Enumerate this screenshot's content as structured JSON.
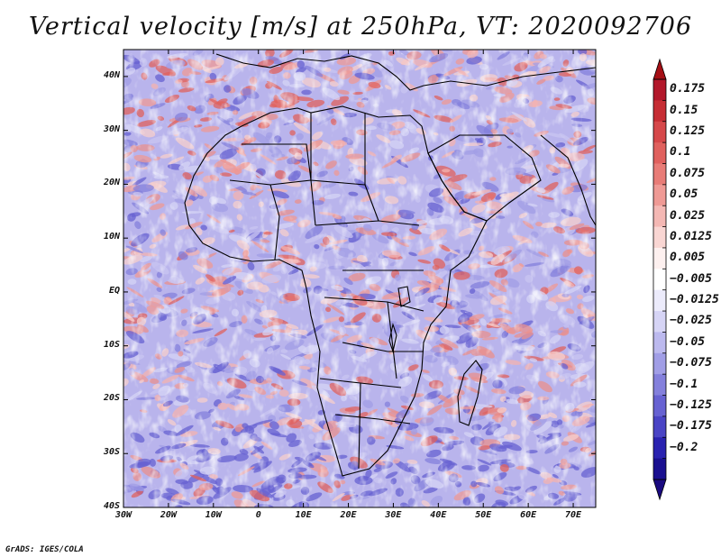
{
  "title": "Vertical velocity [m/s] at 250hPa, VT: 2020092706",
  "footer": "GrADS: IGES/COLA",
  "axes": {
    "lat_labels": [
      "40N",
      "30N",
      "20N",
      "10N",
      "EQ",
      "10S",
      "20S",
      "30S",
      "40S"
    ],
    "lon_labels": [
      "30W",
      "20W",
      "10W",
      "0",
      "10E",
      "20E",
      "30E",
      "40E",
      "50E",
      "60E",
      "70E"
    ],
    "lat_range": [
      -40,
      45
    ],
    "lon_range": [
      -30,
      75
    ]
  },
  "colorbar": {
    "labels": [
      "0.175",
      "0.15",
      "0.125",
      "0.1",
      "0.075",
      "0.05",
      "0.025",
      "0.0125",
      "0.005",
      "-0.005",
      "-0.0125",
      "-0.025",
      "-0.05",
      "-0.075",
      "-0.1",
      "-0.125",
      "-0.175",
      "-0.2"
    ],
    "colors": [
      "#b2182b",
      "#c62d34",
      "#d6484a",
      "#e0615e",
      "#e87c77",
      "#ef9a95",
      "#f4b8b4",
      "#f9d6d3",
      "#fdf0ef",
      "#ffffff",
      "#ecebfb",
      "#d6d4f5",
      "#bcb9ee",
      "#a19ee6",
      "#8480dc",
      "#6762d2",
      "#4a44c5",
      "#2a22b0",
      "#1a1090"
    ]
  }
}
